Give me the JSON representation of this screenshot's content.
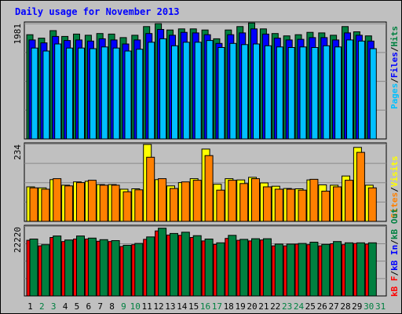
{
  "title": "Daily usage for November 2013",
  "chart_data": {
    "type": "bar",
    "categories": [
      "1",
      "2",
      "3",
      "4",
      "5",
      "6",
      "7",
      "8",
      "9",
      "10",
      "11",
      "12",
      "13",
      "14",
      "15",
      "16",
      "17",
      "18",
      "19",
      "20",
      "21",
      "22",
      "23",
      "24",
      "25",
      "26",
      "27",
      "28",
      "29",
      "30",
      "31"
    ],
    "weekend_days": [
      "2",
      "3",
      "9",
      "10",
      "16",
      "17",
      "23",
      "24",
      "30",
      "31"
    ],
    "panels": [
      {
        "id": "hits",
        "max_label": "1981",
        "ymax": 1981,
        "legend": [
          {
            "text": "Pages",
            "color": "#00c0ff"
          },
          {
            "text": "/",
            "color": "#000000"
          },
          {
            "text": "Files",
            "color": "#0000ff"
          },
          {
            "text": "/",
            "color": "#000000"
          },
          {
            "text": "Hits",
            "color": "#008040"
          }
        ],
        "series": [
          {
            "name": "Hits",
            "color": "#008040",
            "values": [
              1790,
              1730,
              1860,
              1760,
              1800,
              1780,
              1810,
              1800,
              1740,
              1780,
              1930,
              1980,
              1870,
              1890,
              1890,
              1870,
              1720,
              1870,
              1930,
              1990,
              1890,
              1810,
              1770,
              1790,
              1830,
              1820,
              1780,
              1930,
              1840,
              1770,
              null
            ]
          },
          {
            "name": "Files",
            "color": "#0000ff",
            "values": [
              1700,
              1650,
              1760,
              1690,
              1700,
              1680,
              1720,
              1700,
              1630,
              1700,
              1810,
              1880,
              1780,
              1830,
              1820,
              1790,
              1640,
              1790,
              1820,
              1890,
              1800,
              1730,
              1700,
              1710,
              1740,
              1740,
              1700,
              1820,
              1780,
              1680,
              null
            ]
          },
          {
            "name": "Pages",
            "color": "#00c0ff",
            "values": [
              1560,
              1510,
              1630,
              1560,
              1560,
              1550,
              1580,
              1560,
              1510,
              1540,
              1660,
              1720,
              1600,
              1660,
              1660,
              1690,
              1570,
              1640,
              1620,
              1630,
              1600,
              1580,
              1570,
              1580,
              1570,
              1600,
              1580,
              1700,
              1680,
              1550,
              null
            ]
          }
        ]
      },
      {
        "id": "visits",
        "max_label": "234",
        "ymax": 234,
        "legend": [
          {
            "text": "Sites",
            "color": "#ff8000"
          },
          {
            "text": "/",
            "color": "#000000"
          },
          {
            "text": "Visits",
            "color": "#ffff00"
          }
        ],
        "series": [
          {
            "name": "Visits",
            "color": "#ffff00",
            "values": [
              105,
              102,
              127,
              110,
              120,
              122,
              112,
              112,
              98,
              99,
              234,
              127,
              108,
              118,
              130,
              220,
              113,
              130,
              126,
              134,
              117,
              107,
              100,
              99,
              126,
              111,
              110,
              138,
              225,
              110,
              null
            ]
          },
          {
            "name": "Sites",
            "color": "#ff8000",
            "values": [
              102,
              98,
              130,
              108,
              118,
              125,
              110,
              110,
              90,
              96,
              195,
              130,
              100,
              120,
              125,
              200,
              95,
              125,
              115,
              130,
              105,
              98,
              98,
              95,
              128,
              92,
              105,
              125,
              210,
              102,
              null
            ]
          }
        ]
      },
      {
        "id": "kbytes",
        "max_label": "22220",
        "ymax": 22220,
        "legend": [
          {
            "text": "kB F",
            "color": "#ff0000"
          },
          {
            "text": "/",
            "color": "#000000"
          },
          {
            "text": "kB In",
            "color": "#0000ff"
          },
          {
            "text": "/",
            "color": "#000000"
          },
          {
            "text": "kB Out",
            "color": "#008040"
          }
        ],
        "series": [
          {
            "name": "kB F",
            "color": "#ff0000",
            "values": [
              17900,
              16100,
              18800,
              17500,
              18300,
              18300,
              17600,
              17500,
              15900,
              16500,
              18200,
              20900,
              19600,
              19500,
              18800,
              17700,
              16600,
              18500,
              17900,
              17700,
              18000,
              16100,
              16100,
              16700,
              16500,
              16100,
              16800,
              16500,
              16900,
              16700,
              null
            ]
          },
          {
            "name": "kB Out",
            "color": "#008040",
            "values": [
              18300,
              16500,
              19300,
              18000,
              19300,
              18600,
              18100,
              17800,
              16300,
              16900,
              19000,
              21800,
              20100,
              20500,
              19400,
              18300,
              17100,
              19500,
              18200,
              18400,
              18400,
              16700,
              16700,
              16900,
              17300,
              16600,
              17500,
              17100,
              17100,
              17100,
              null
            ]
          }
        ]
      }
    ]
  }
}
